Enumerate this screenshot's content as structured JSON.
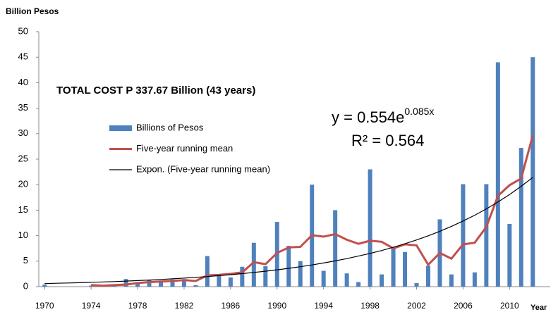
{
  "chart_data": {
    "type": "bar",
    "y_axis_label": "Billion Pesos",
    "x_axis_label": "Year",
    "annotation": "TOTAL COST   P 337.67 Billion (43 years)",
    "equation": {
      "base": "y = 0.554e",
      "exponent": "0.085x"
    },
    "r_squared": "R² = 0.564",
    "x": [
      1970,
      1971,
      1972,
      1973,
      1974,
      1975,
      1976,
      1977,
      1978,
      1979,
      1980,
      1981,
      1982,
      1983,
      1984,
      1985,
      1986,
      1987,
      1988,
      1989,
      1990,
      1991,
      1992,
      1993,
      1994,
      1995,
      1996,
      1997,
      1998,
      1999,
      2000,
      2001,
      2002,
      2003,
      2004,
      2005,
      2006,
      2007,
      2008,
      2009,
      2010,
      2011,
      2012
    ],
    "xlim": [
      1969.5,
      2013.5
    ],
    "xticks": [
      1970,
      1974,
      1978,
      1982,
      1986,
      1990,
      1994,
      1998,
      2002,
      2006,
      2010
    ],
    "ylim": [
      0,
      50
    ],
    "yticks": [
      0,
      5,
      10,
      15,
      20,
      25,
      30,
      35,
      40,
      45,
      50
    ],
    "legend": "center-left",
    "series": [
      {
        "name": "Billions of Pesos",
        "kind": "bar",
        "color": "#4f81bd",
        "values": [
          0.4,
          0,
          0,
          0,
          0.2,
          0.2,
          0.3,
          1.5,
          0.9,
          1.3,
          1.2,
          1.4,
          1.1,
          0.3,
          6.0,
          2.2,
          1.8,
          3.9,
          8.6,
          4.0,
          12.7,
          8.0,
          5.0,
          20.0,
          3.1,
          15.0,
          2.6,
          0.9,
          23.0,
          2.4,
          7.6,
          6.8,
          0.7,
          4.1,
          13.2,
          2.4,
          20.1,
          2.8,
          20.1,
          44.0,
          12.3,
          27.2,
          45.0
        ]
      },
      {
        "name": "Five-year running mean",
        "kind": "line",
        "color": "#c0504d",
        "values": [
          null,
          null,
          null,
          null,
          0.3,
          0.2,
          0.3,
          0.4,
          0.7,
          0.9,
          1.0,
          1.1,
          1.3,
          1.1,
          2.2,
          2.3,
          2.5,
          2.8,
          4.8,
          4.4,
          6.6,
          7.7,
          7.8,
          10.1,
          9.8,
          10.3,
          9.2,
          8.4,
          9.0,
          8.8,
          7.5,
          8.3,
          8.1,
          4.3,
          6.6,
          5.5,
          8.3,
          8.6,
          11.7,
          17.8,
          19.9,
          21.2,
          29.7
        ]
      },
      {
        "name": "Expon. (Five-year running mean)",
        "kind": "trend",
        "color": "#000000",
        "values": [
          0.6,
          0.66,
          0.72,
          0.78,
          0.85,
          0.92,
          1.0,
          1.09,
          1.19,
          1.3,
          1.41,
          1.54,
          1.67,
          1.82,
          1.98,
          2.16,
          2.35,
          2.56,
          2.79,
          3.03,
          3.3,
          3.59,
          3.91,
          4.26,
          4.64,
          5.05,
          5.5,
          5.99,
          6.52,
          7.09,
          7.72,
          8.41,
          9.16,
          9.97,
          10.85,
          11.82,
          12.87,
          14.01,
          15.25,
          16.6,
          18.07,
          19.68,
          21.42
        ]
      }
    ]
  }
}
